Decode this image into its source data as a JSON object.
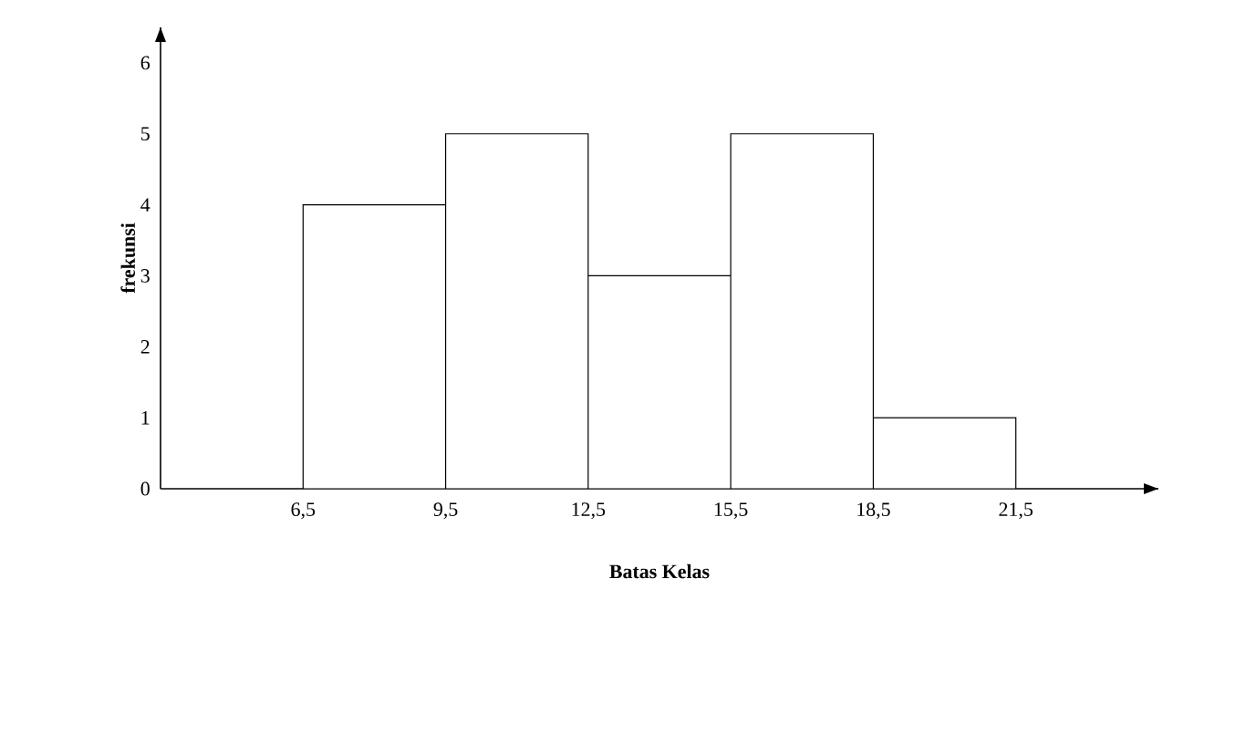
{
  "chart_data": {
    "type": "histogram",
    "xlabel": "Batas Kelas",
    "ylabel": "frekunsi",
    "bins": [
      6.5,
      9.5,
      12.5,
      15.5,
      18.5,
      21.5
    ],
    "values": [
      4,
      5,
      3,
      5,
      1
    ],
    "color": "#ffffff",
    "xlim": [
      3.5,
      24.5
    ],
    "ylim": [
      0,
      6.5
    ],
    "xticks": [
      {
        "value": 6.5,
        "label": "6,5"
      },
      {
        "value": 9.5,
        "label": "9,5"
      },
      {
        "value": 12.5,
        "label": "12,5"
      },
      {
        "value": 15.5,
        "label": "15,5"
      },
      {
        "value": 18.5,
        "label": "18,5"
      },
      {
        "value": 21.5,
        "label": "21,5"
      }
    ],
    "yticks": [
      0,
      1,
      2,
      3,
      4,
      5,
      6
    ],
    "grid": false
  }
}
